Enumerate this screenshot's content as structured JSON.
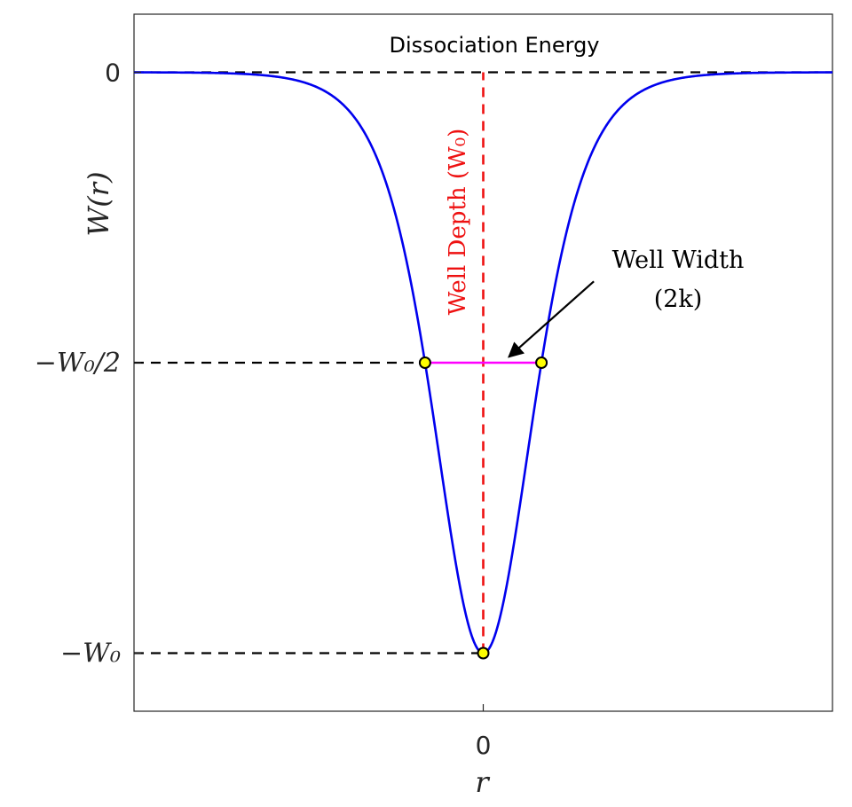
{
  "chart_data": {
    "type": "line",
    "title": "",
    "xlabel": "r",
    "ylabel": "W(r)",
    "xlim": [
      -3,
      3
    ],
    "ylim": [
      -1.1,
      0.1
    ],
    "x_ticks": [
      {
        "value": 0,
        "label": "0"
      }
    ],
    "y_ticks": [
      {
        "value": 0,
        "label": "0"
      },
      {
        "value": -0.5,
        "label": "−W₀/2"
      },
      {
        "value": -1,
        "label": "−W₀"
      }
    ],
    "grid": false,
    "series": [
      {
        "name": "",
        "kind": "curve",
        "formula": "W(r) = -W0 * sech^2(r / k)",
        "W0": 1,
        "k": 0.5672,
        "color": "#0000ee"
      }
    ],
    "reference_lines": [
      {
        "orientation": "horizontal",
        "value": 0,
        "style": "dashed",
        "color": "#000000"
      },
      {
        "orientation": "horizontal",
        "value": -0.5,
        "from_x": -3,
        "to_x": -0.5,
        "style": "dashed",
        "color": "#000000"
      },
      {
        "orientation": "horizontal",
        "value": -1,
        "from_x": -3,
        "to_x": 0,
        "style": "dashed",
        "color": "#000000"
      },
      {
        "orientation": "vertical",
        "value": 0,
        "from_y": -1,
        "to_y": 0,
        "style": "dashed",
        "color": "#ee1111"
      }
    ],
    "width_segment": {
      "x": [
        -0.5,
        0.5
      ],
      "y": -0.5,
      "color": "#ff00ff"
    },
    "markers": [
      {
        "x": -0.5,
        "y": -0.5
      },
      {
        "x": 0.5,
        "y": -0.5
      },
      {
        "x": 0,
        "y": -1
      }
    ],
    "marker_style": {
      "fill": "#ffff00",
      "stroke": "#000000"
    },
    "annotations": {
      "dissociation": "Dissociation Energy",
      "depth": "Well Depth (W₀)",
      "width_line1": "Well Width",
      "width_line2": "(2k)",
      "arrow_from": {
        "x": 0.95,
        "y": -0.36
      },
      "arrow_to": {
        "x": 0.22,
        "y": -0.49
      }
    }
  }
}
